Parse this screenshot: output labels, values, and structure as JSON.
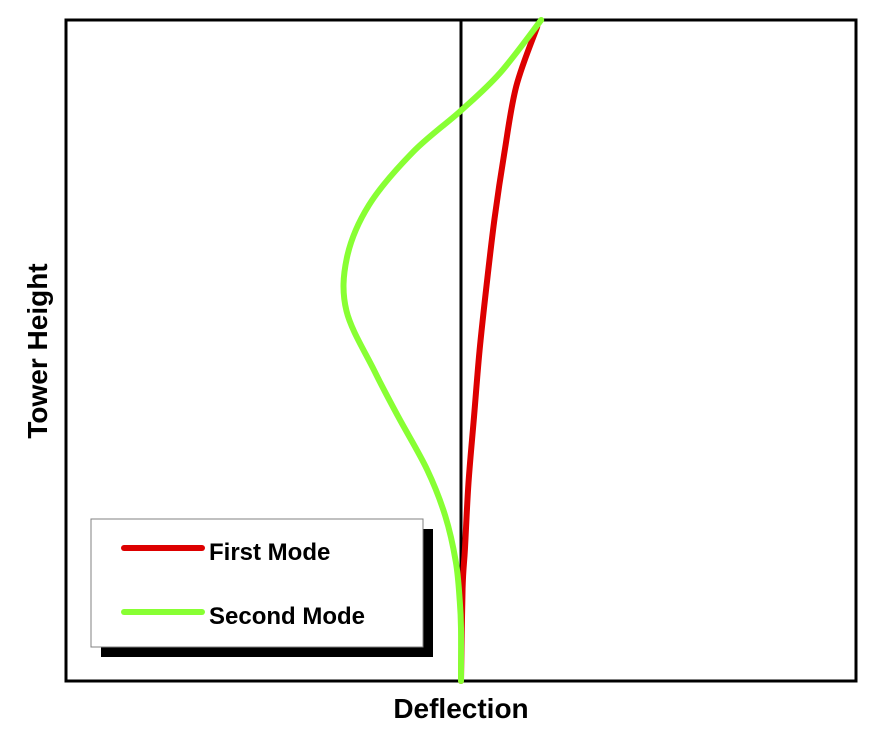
{
  "chart_data": {
    "type": "line",
    "title": "",
    "xlabel": "Deflection",
    "ylabel": "Tower Height",
    "xlim": [
      -1.0,
      1.0
    ],
    "ylim": [
      0.0,
      1.0
    ],
    "grid": false,
    "x_ticks": "none",
    "y_ticks": "none",
    "zero_line": "vertical at x = 0",
    "legend": {
      "position": "bottom-left",
      "shadow": true
    },
    "series": [
      {
        "name": "First Mode",
        "color": "#dd0000",
        "points": [
          [
            0.0,
            0.0
          ],
          [
            0.004,
            0.14
          ],
          [
            0.01,
            0.2
          ],
          [
            0.019,
            0.3
          ],
          [
            0.033,
            0.4
          ],
          [
            0.047,
            0.5
          ],
          [
            0.065,
            0.6
          ],
          [
            0.085,
            0.7
          ],
          [
            0.11,
            0.8
          ],
          [
            0.14,
            0.9
          ],
          [
            0.193,
            0.99
          ]
        ]
      },
      {
        "name": "Second Mode",
        "color": "#88ff33",
        "points": [
          [
            0.0,
            0.0
          ],
          [
            0.0,
            0.08
          ],
          [
            -0.003,
            0.12
          ],
          [
            -0.013,
            0.18
          ],
          [
            -0.04,
            0.25
          ],
          [
            -0.086,
            0.32
          ],
          [
            -0.159,
            0.4
          ],
          [
            -0.22,
            0.47
          ],
          [
            -0.29,
            0.56
          ],
          [
            -0.289,
            0.64
          ],
          [
            -0.233,
            0.72
          ],
          [
            -0.122,
            0.8
          ],
          [
            0.0,
            0.863
          ],
          [
            0.099,
            0.92
          ],
          [
            0.203,
            1.0
          ]
        ]
      }
    ]
  }
}
